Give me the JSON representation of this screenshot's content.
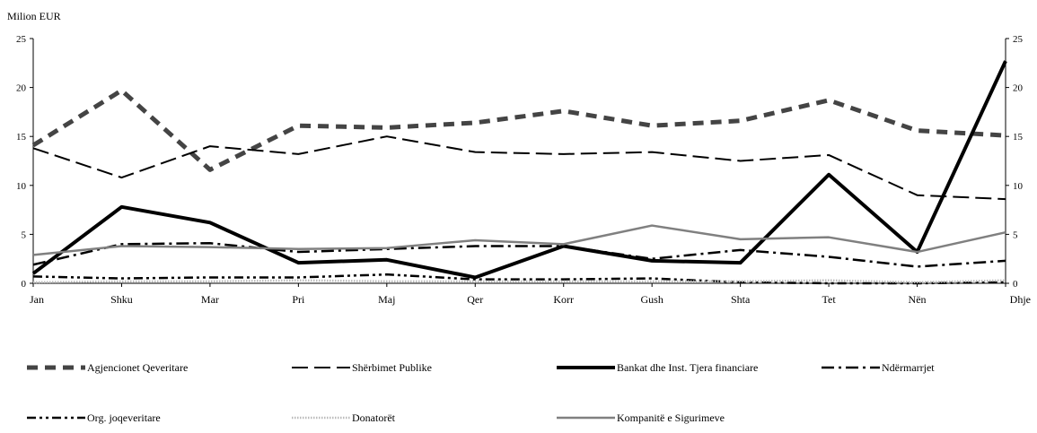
{
  "chart_data": {
    "type": "line",
    "unit_label": "Milion EUR",
    "categories": [
      "Jan",
      "Shku",
      "Mar",
      "Pri",
      "Maj",
      "Qer",
      "Korr",
      "Gush",
      "Shta",
      "Tet",
      "Nën",
      "Dhje"
    ],
    "ylim": [
      0,
      25
    ],
    "yticks": [
      0,
      5,
      10,
      15,
      20,
      25
    ],
    "grid": false,
    "secondary_y_axis": true,
    "legend_position": "bottom",
    "series": [
      {
        "name": "Agjencionet Qeveritare",
        "color": "#444444",
        "style": "dashed-thick",
        "values": [
          14.1,
          19.7,
          11.6,
          16.1,
          15.9,
          16.4,
          17.6,
          16.1,
          16.6,
          18.7,
          15.6,
          15.1
        ]
      },
      {
        "name": "Shërbimet Publike",
        "color": "#000000",
        "style": "long-dash",
        "values": [
          13.8,
          10.8,
          14.0,
          13.2,
          15.0,
          13.4,
          13.2,
          13.4,
          12.5,
          13.1,
          9.0,
          8.6
        ]
      },
      {
        "name": "Bankat dhe Inst. Tjera financiare",
        "color": "#000000",
        "style": "solid-thick",
        "values": [
          1.0,
          7.8,
          6.2,
          2.1,
          2.4,
          0.6,
          3.8,
          2.3,
          2.1,
          11.1,
          3.2,
          22.7
        ]
      },
      {
        "name": "Ndërmarrjet",
        "color": "#000000",
        "style": "dash-dot",
        "values": [
          1.9,
          4.0,
          4.1,
          3.2,
          3.5,
          3.8,
          3.8,
          2.5,
          3.4,
          2.7,
          1.7,
          2.3
        ]
      },
      {
        "name": "Org. joqeveritare",
        "color": "#000000",
        "style": "dash-dot-dot",
        "values": [
          0.7,
          0.5,
          0.6,
          0.6,
          0.9,
          0.4,
          0.4,
          0.5,
          0.1,
          0.0,
          0.0,
          0.1
        ]
      },
      {
        "name": "Donatorët",
        "color": "#bbbbbb",
        "style": "dotted",
        "values": [
          0.1,
          0.2,
          0.2,
          0.3,
          0.2,
          0.2,
          0.2,
          0.2,
          0.2,
          0.3,
          0.1,
          0.3
        ]
      },
      {
        "name": "Kompanitë e Sigurimeve",
        "color": "#808080",
        "style": "solid",
        "values": [
          2.9,
          3.8,
          3.7,
          3.5,
          3.6,
          4.4,
          4.0,
          5.9,
          4.5,
          4.7,
          3.2,
          5.2
        ]
      }
    ]
  }
}
